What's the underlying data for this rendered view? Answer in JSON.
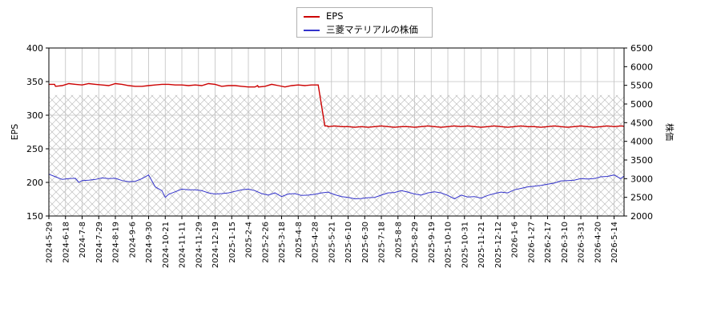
{
  "chart_data": {
    "type": "line",
    "legend": {
      "placement": "top-center",
      "items": [
        "EPS",
        "三菱マテリアルの株価"
      ]
    },
    "colors": {
      "eps": "#cc0000",
      "price": "#3333cc",
      "grid": "#c0c0c0",
      "hatch": "#b4b4b4"
    },
    "grid": true,
    "x_axis": {
      "tick_labels": [
        "2024-5-29",
        "2024-6-18",
        "2024-7-8",
        "2024-7-29",
        "2024-8-19",
        "2024-9-6",
        "2024-9-30",
        "2024-10-21",
        "2024-11-11",
        "2024-11-29",
        "2024-12-19",
        "2025-1-15",
        "2025-2-4",
        "2025-2-26",
        "2025-3-18",
        "2025-4-8",
        "2025-4-28",
        "2025-5-21",
        "2025-6-10",
        "2025-6-30",
        "2025-7-18",
        "2025-8-8",
        "2025-8-29",
        "2025-9-19",
        "2025-10-10",
        "2025-10-31",
        "2025-11-21",
        "2025-12-12",
        "2026-1-6",
        "2026-1-27",
        "2026-2-17",
        "2026-3-10",
        "2026-3-31",
        "2026-4-20",
        "2026-5-14"
      ]
    },
    "y_left": {
      "label": "EPS",
      "ylim": [
        150,
        400
      ],
      "ticks": [
        150,
        200,
        250,
        300,
        350,
        400
      ]
    },
    "y_right": {
      "label": "株価",
      "ylim": [
        2000,
        6500
      ],
      "ticks": [
        2000,
        2500,
        3000,
        3500,
        4000,
        4500,
        5000,
        5500,
        6000,
        6500
      ]
    },
    "shaded_band": {
      "y_from": 150,
      "y_to": 330
    },
    "series": [
      {
        "name": "EPS",
        "axis": "left",
        "x": [
          0,
          1.7,
          2,
          4,
          6,
          8,
          10,
          12,
          14,
          16,
          18,
          20,
          22,
          24,
          26,
          28,
          30,
          32,
          34,
          36,
          38,
          40,
          42,
          44,
          46,
          48,
          50,
          52,
          54,
          56,
          58,
          60,
          62,
          62.8,
          63,
          65,
          67,
          69,
          71,
          73,
          75,
          77,
          79,
          81,
          83,
          83.8,
          84,
          86,
          88,
          90,
          92,
          94,
          96,
          98,
          100,
          102,
          104,
          106,
          108,
          110,
          112,
          114,
          116,
          118,
          120,
          122,
          124,
          126,
          128,
          130,
          132,
          134,
          136,
          138,
          140,
          142,
          144,
          146,
          148,
          150,
          152,
          154,
          156,
          158,
          160,
          162,
          164,
          166,
          168,
          170,
          172,
          174,
          174.5,
          174.8,
          175
        ],
        "y": [
          346,
          346,
          343,
          344,
          347,
          346,
          345,
          347,
          346,
          345,
          344,
          347,
          346,
          344,
          343,
          343,
          344,
          345,
          346,
          346,
          345,
          345,
          344,
          345,
          344,
          347,
          346,
          343,
          344,
          344,
          343,
          342,
          342,
          344,
          342,
          343,
          346,
          344,
          342,
          344,
          345,
          344,
          345,
          345,
          284,
          284,
          283,
          284,
          283,
          283,
          282,
          283,
          282,
          283,
          284,
          283,
          282,
          283,
          283,
          282,
          283,
          284,
          283,
          282,
          283,
          284,
          283,
          284,
          283,
          282,
          283,
          284,
          283,
          282,
          283,
          284,
          283,
          283,
          282,
          283,
          284,
          283,
          282,
          283,
          284,
          283,
          282,
          283,
          284,
          283,
          284,
          283,
          280,
          285,
          284
        ]
      },
      {
        "name": "三菱マテリアルの株価",
        "axis": "right",
        "x": [
          0,
          2,
          4,
          6,
          8,
          9,
          10,
          12,
          14,
          16,
          18,
          20,
          22,
          24,
          26,
          28,
          30,
          32,
          34,
          35,
          36,
          38,
          40,
          42,
          44,
          46,
          48,
          50,
          52,
          54,
          56,
          58,
          60,
          62,
          64,
          66,
          68,
          70,
          72,
          74,
          76,
          78,
          80,
          82,
          84,
          86,
          88,
          90,
          92,
          94,
          96,
          98,
          100,
          102,
          104,
          106,
          108,
          110,
          112,
          114,
          116,
          118,
          120,
          122,
          124,
          126,
          128,
          130,
          132,
          134,
          136,
          138,
          140,
          142,
          144,
          146,
          148,
          150,
          152,
          154,
          156,
          158,
          160,
          162,
          164,
          166,
          168,
          170,
          172,
          174,
          175
        ],
        "y": [
          3120,
          3050,
          2980,
          3000,
          3010,
          2900,
          2950,
          2960,
          2980,
          3020,
          3000,
          3010,
          2950,
          2920,
          2930,
          3000,
          3100,
          2780,
          2680,
          2500,
          2580,
          2650,
          2720,
          2700,
          2700,
          2680,
          2620,
          2590,
          2600,
          2620,
          2660,
          2700,
          2720,
          2680,
          2600,
          2560,
          2620,
          2520,
          2590,
          2600,
          2550,
          2560,
          2580,
          2620,
          2640,
          2570,
          2520,
          2500,
          2460,
          2470,
          2490,
          2500,
          2560,
          2620,
          2630,
          2680,
          2640,
          2590,
          2560,
          2620,
          2650,
          2620,
          2550,
          2460,
          2560,
          2510,
          2520,
          2480,
          2550,
          2600,
          2640,
          2620,
          2700,
          2740,
          2780,
          2800,
          2820,
          2850,
          2880,
          2940,
          2950,
          2960,
          3000,
          2990,
          3000,
          3050,
          3060,
          3100,
          3000,
          3140,
          3080
        ]
      }
    ]
  }
}
